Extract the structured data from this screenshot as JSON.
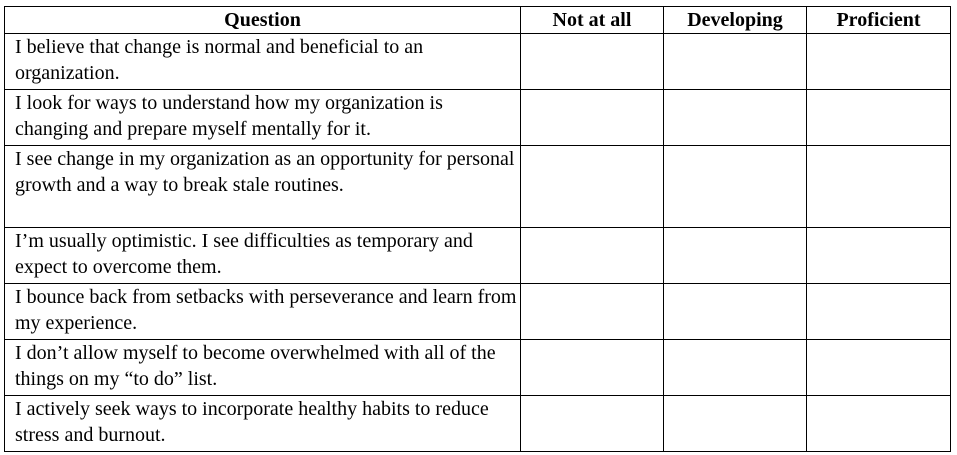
{
  "headers": {
    "question": "Question",
    "not_at_all": "Not at all",
    "developing": "Developing",
    "proficient": "Proficient"
  },
  "rows": [
    {
      "question": "I believe that change is normal and beneficial to an organization."
    },
    {
      "question": "I look for ways to understand how my organization is changing and prepare myself mentally for it."
    },
    {
      "question": "I see change in my organization as an opportunity for personal growth and a way to break stale routines."
    },
    {
      "question": "I’m usually optimistic.  I see difficulties as temporary and expect to overcome them."
    },
    {
      "question": "I bounce back from setbacks with perseverance and learn from my experience."
    },
    {
      "question": "I don’t allow myself to become overwhelmed with all of the things on my “to do” list."
    },
    {
      "question": "I actively seek ways to incorporate healthy habits to reduce stress and burnout."
    }
  ]
}
